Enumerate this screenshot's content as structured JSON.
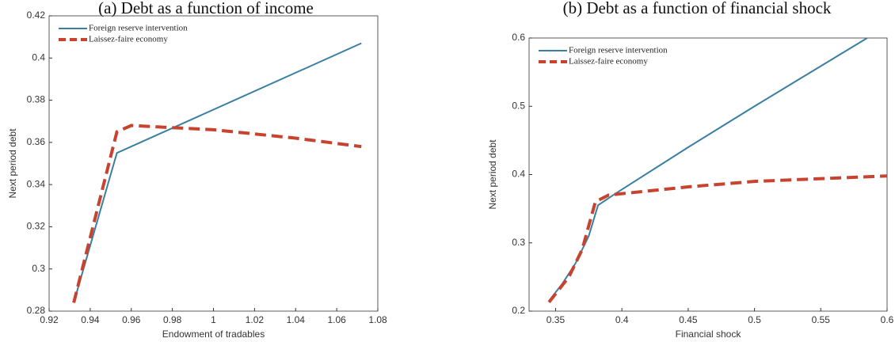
{
  "chart_data": [
    {
      "type": "line",
      "title": "(a) Debt as a function of income",
      "xlabel": "Endowment of tradables",
      "ylabel": "Next period debt",
      "xlim": [
        0.92,
        1.08
      ],
      "xticks": [
        0.92,
        0.94,
        0.96,
        0.98,
        1,
        1.02,
        1.04,
        1.06,
        1.08
      ],
      "ylim": [
        0.28,
        0.42
      ],
      "yticks": [
        0.28,
        0.3,
        0.32,
        0.34,
        0.36,
        0.38,
        0.4,
        0.42
      ],
      "legend": "upper left",
      "series": [
        {
          "name": "Foreign reserve intervention",
          "color": "#3a7ea1",
          "style": "solid",
          "x": [
            0.932,
            0.953,
            1.072
          ],
          "values": [
            0.284,
            0.355,
            0.407
          ]
        },
        {
          "name": "Laissez-faire economy",
          "color": "#c8432f",
          "style": "dashed",
          "x": [
            0.932,
            0.953,
            0.96,
            0.98,
            1.0,
            1.02,
            1.04,
            1.072
          ],
          "values": [
            0.284,
            0.365,
            0.368,
            0.367,
            0.366,
            0.364,
            0.362,
            0.358
          ]
        }
      ]
    },
    {
      "type": "line",
      "title": "(b) Debt as a function of financial shock",
      "xlabel": "Financial shock",
      "ylabel": "Next period debt",
      "xlim": [
        0.33,
        0.6
      ],
      "xticks": [
        0.35,
        0.4,
        0.45,
        0.5,
        0.55,
        0.6
      ],
      "ylim": [
        0.2,
        0.6
      ],
      "yticks": [
        0.2,
        0.3,
        0.4,
        0.5,
        0.6
      ],
      "legend": "upper left",
      "series": [
        {
          "name": "Foreign reserve intervention",
          "color": "#3a7ea1",
          "style": "solid",
          "x": [
            0.345,
            0.355,
            0.365,
            0.375,
            0.382,
            0.395,
            0.45,
            0.5,
            0.585
          ],
          "values": [
            0.215,
            0.24,
            0.27,
            0.31,
            0.355,
            0.372,
            0.44,
            0.5,
            0.6
          ]
        },
        {
          "name": "Laissez-faire economy",
          "color": "#c8432f",
          "style": "dashed",
          "x": [
            0.345,
            0.36,
            0.37,
            0.38,
            0.39,
            0.45,
            0.5,
            0.6
          ],
          "values": [
            0.213,
            0.25,
            0.29,
            0.36,
            0.37,
            0.382,
            0.39,
            0.398
          ]
        }
      ]
    }
  ]
}
